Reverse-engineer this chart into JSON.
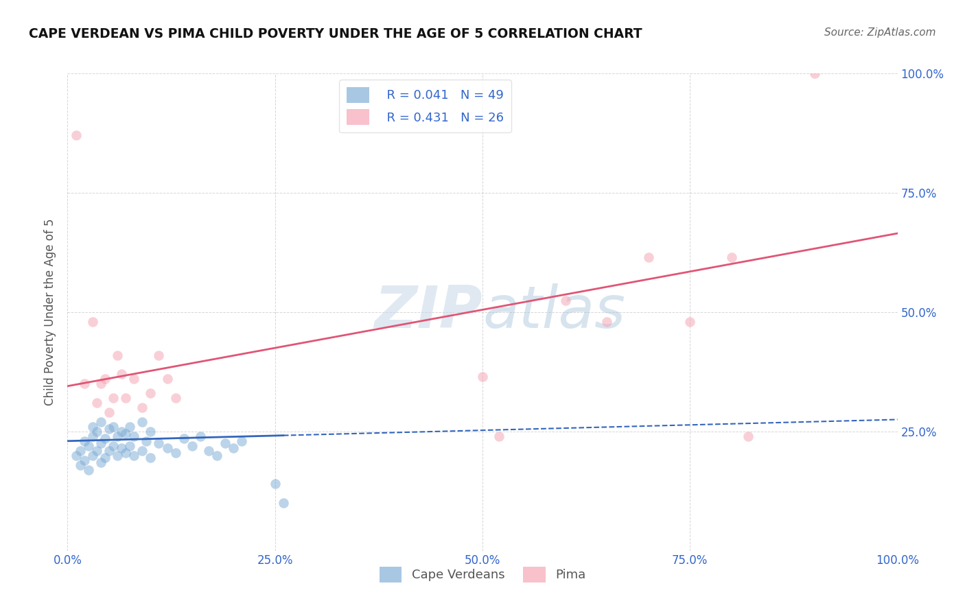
{
  "title": "CAPE VERDEAN VS PIMA CHILD POVERTY UNDER THE AGE OF 5 CORRELATION CHART",
  "source": "Source: ZipAtlas.com",
  "ylabel": "Child Poverty Under the Age of 5",
  "xlabel": "",
  "xlim": [
    0.0,
    1.0
  ],
  "ylim": [
    0.0,
    1.0
  ],
  "xtick_labels": [
    "0.0%",
    "25.0%",
    "50.0%",
    "75.0%",
    "100.0%"
  ],
  "background_color": "#ffffff",
  "grid_color": "#bbbbbb",
  "watermark_zip": "ZIP",
  "watermark_atlas": "atlas",
  "cape_verdean_color": "#7aaad4",
  "pima_color": "#f5a0b0",
  "cape_verdean_line_color": "#3366bb",
  "pima_line_color": "#e05575",
  "R_cv": 0.041,
  "N_cv": 49,
  "R_pima": 0.431,
  "N_pima": 26,
  "legend_label_cv": "Cape Verdeans",
  "legend_label_pima": "Pima",
  "cape_verdean_x": [
    0.01,
    0.015,
    0.015,
    0.02,
    0.02,
    0.025,
    0.025,
    0.03,
    0.03,
    0.03,
    0.035,
    0.035,
    0.04,
    0.04,
    0.04,
    0.045,
    0.045,
    0.05,
    0.05,
    0.055,
    0.055,
    0.06,
    0.06,
    0.065,
    0.065,
    0.07,
    0.07,
    0.075,
    0.075,
    0.08,
    0.08,
    0.09,
    0.09,
    0.095,
    0.1,
    0.1,
    0.11,
    0.12,
    0.13,
    0.14,
    0.15,
    0.16,
    0.17,
    0.18,
    0.19,
    0.2,
    0.21,
    0.25,
    0.26
  ],
  "cape_verdean_y": [
    0.2,
    0.18,
    0.21,
    0.19,
    0.23,
    0.17,
    0.22,
    0.2,
    0.24,
    0.26,
    0.21,
    0.25,
    0.185,
    0.225,
    0.27,
    0.195,
    0.235,
    0.21,
    0.255,
    0.22,
    0.26,
    0.2,
    0.24,
    0.215,
    0.25,
    0.205,
    0.245,
    0.22,
    0.26,
    0.2,
    0.24,
    0.21,
    0.27,
    0.23,
    0.195,
    0.25,
    0.225,
    0.215,
    0.205,
    0.235,
    0.22,
    0.24,
    0.21,
    0.2,
    0.225,
    0.215,
    0.23,
    0.14,
    0.1
  ],
  "pima_x": [
    0.01,
    0.02,
    0.03,
    0.035,
    0.04,
    0.045,
    0.05,
    0.055,
    0.06,
    0.065,
    0.07,
    0.08,
    0.09,
    0.1,
    0.11,
    0.12,
    0.13,
    0.5,
    0.52,
    0.6,
    0.65,
    0.7,
    0.75,
    0.8,
    0.82,
    0.9
  ],
  "pima_y": [
    0.87,
    0.35,
    0.48,
    0.31,
    0.35,
    0.36,
    0.29,
    0.32,
    0.41,
    0.37,
    0.32,
    0.36,
    0.3,
    0.33,
    0.41,
    0.36,
    0.32,
    0.365,
    0.24,
    0.525,
    0.48,
    0.615,
    0.48,
    0.615,
    0.24,
    1.0
  ],
  "cv_line_solid_end": 0.26,
  "cv_line_dash_start": 0.26,
  "cv_line_x_end": 1.0,
  "pima_line_x_start": 0.0,
  "pima_line_x_end": 1.0,
  "cv_line_intercept": 0.23,
  "cv_line_slope": 0.045,
  "pima_line_intercept": 0.345,
  "pima_line_slope": 0.32
}
